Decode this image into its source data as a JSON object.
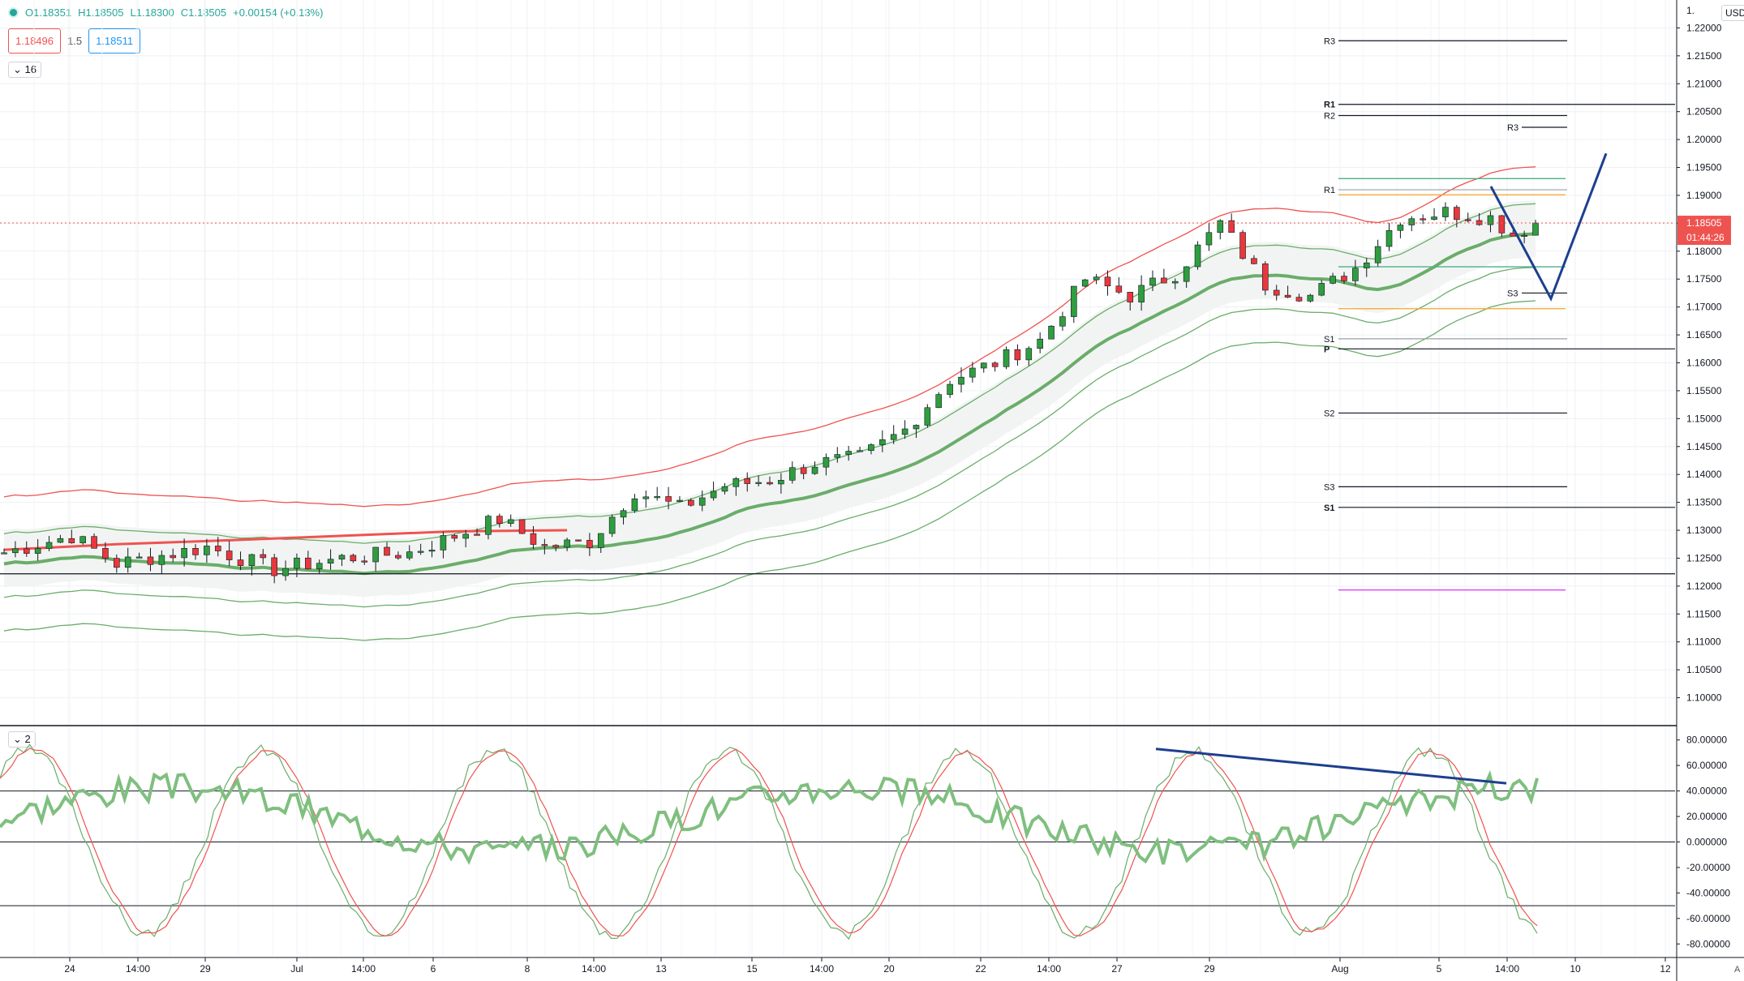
{
  "legend": {
    "open": "O1.18351",
    "high": "H1.18505",
    "low": "L1.18300",
    "close": "C1.18505",
    "change": "+0.00154 (+0.13%)",
    "sell": "1.18496",
    "spread": "1.5",
    "buy": "1.18511"
  },
  "indicators": {
    "main_badge": "16",
    "osc_badge": "2"
  },
  "currency": "USD",
  "auto_label": "A",
  "price_tag": "1.18505",
  "countdown": "01:44:26",
  "top_tick_label": "1.",
  "colors": {
    "bull": "#26a69a",
    "bear": "#ef5350",
    "green_line": "#6aad6a",
    "red_line": "#ef5350",
    "blue": "#1d3f8f",
    "price_line": "#ef5350",
    "orange": "#f5a623",
    "magenta": "#e040fb",
    "teal": "#4caf88"
  },
  "chart_data": [
    {
      "type": "candlestick",
      "title": "",
      "ylim": [
        1.095,
        1.225
      ],
      "y_ticks": [
        "1.22000",
        "1.21500",
        "1.21000",
        "1.20500",
        "1.20000",
        "1.19500",
        "1.19000",
        "1.18500",
        "1.18000",
        "1.17500",
        "1.17000",
        "1.16500",
        "1.16000",
        "1.15500",
        "1.15000",
        "1.14500",
        "1.14000",
        "1.13500",
        "1.13000",
        "1.12500",
        "1.12000",
        "1.11500",
        "1.11000",
        "1.10500",
        "1.10000"
      ],
      "x_labels": [
        "24",
        "14:00",
        "29",
        "Jul",
        "14:00",
        "6",
        "8",
        "14:00",
        "13",
        "15",
        "14:00",
        "20",
        "22",
        "14:00",
        "27",
        "29",
        "Aug",
        "5",
        "14:00",
        "10",
        "12"
      ],
      "trend": [
        [
          0,
          1.125
        ],
        [
          14,
          1.128
        ],
        [
          28,
          1.131
        ],
        [
          42,
          1.135
        ],
        [
          56,
          1.142
        ],
        [
          70,
          1.15
        ],
        [
          84,
          1.161
        ],
        [
          98,
          1.172
        ],
        [
          110,
          1.178
        ],
        [
          122,
          1.182
        ],
        [
          130,
          1.185
        ],
        [
          136,
          1.184
        ]
      ],
      "close_series": [
        [
          0,
          1.126
        ],
        [
          6,
          1.129
        ],
        [
          10,
          1.124
        ],
        [
          18,
          1.127
        ],
        [
          24,
          1.123
        ],
        [
          30,
          1.125
        ],
        [
          36,
          1.126
        ],
        [
          40,
          1.129
        ],
        [
          44,
          1.132
        ],
        [
          48,
          1.127
        ],
        [
          52,
          1.128
        ],
        [
          56,
          1.137
        ],
        [
          60,
          1.134
        ],
        [
          64,
          1.138
        ],
        [
          68,
          1.139
        ],
        [
          72,
          1.142
        ],
        [
          76,
          1.143
        ],
        [
          80,
          1.148
        ],
        [
          84,
          1.157
        ],
        [
          88,
          1.16
        ],
        [
          92,
          1.164
        ],
        [
          96,
          1.175
        ],
        [
          100,
          1.172
        ],
        [
          104,
          1.176
        ],
        [
          108,
          1.185
        ],
        [
          112,
          1.174
        ],
        [
          116,
          1.172
        ],
        [
          120,
          1.177
        ],
        [
          124,
          1.186
        ],
        [
          128,
          1.187
        ],
        [
          132,
          1.186
        ],
        [
          134,
          1.183
        ],
        [
          136,
          1.18505
        ]
      ],
      "overlay_points": {
        "upper_band_offset": 0.012,
        "lower_band_offset": 0.012,
        "red_ma_points": [
          [
            0,
            1.1265
          ],
          [
            10,
            1.1275
          ],
          [
            20,
            1.1282
          ],
          [
            30,
            1.129
          ],
          [
            40,
            1.1298
          ],
          [
            50,
            1.13
          ]
        ]
      },
      "pivot_labels": [
        {
          "label": "R3",
          "price": 1.2177
        },
        {
          "label": "R1",
          "price": 1.2063
        },
        {
          "label": "R2",
          "price": 1.2043
        },
        {
          "label": "R3",
          "price": 1.2022
        },
        {
          "label": "R1",
          "price": 1.191
        },
        {
          "label": "S3",
          "price": 1.1725
        },
        {
          "label": "S1",
          "price": 1.1643
        },
        {
          "label": "P",
          "price": 1.1625
        },
        {
          "label": "S2",
          "price": 1.151
        },
        {
          "label": "S3",
          "price": 1.1378
        },
        {
          "label": "S1",
          "price": 1.1341
        }
      ],
      "levels": [
        {
          "price": 1.1222,
          "color": "#131722"
        },
        {
          "price": 1.1193,
          "color": "#e040fb"
        },
        {
          "price": 1.1901,
          "color": "#f5a623"
        },
        {
          "price": 1.1697,
          "color": "#f5a623"
        },
        {
          "price": 1.193,
          "color": "#4caf88"
        },
        {
          "price": 1.1772,
          "color": "#4caf88"
        }
      ],
      "projection": [
        [
          1.1916,
          "a"
        ],
        [
          1.1715,
          "b"
        ],
        [
          1.1975,
          "c"
        ]
      ]
    },
    {
      "type": "line",
      "title": "",
      "ylim": [
        -90,
        90
      ],
      "y_ticks": [
        "80.00000",
        "60.00000",
        "40.00000",
        "20.00000",
        "0.000000",
        "-20.00000",
        "-40.00000",
        "-60.00000",
        "-80.00000"
      ],
      "h_levels": [
        40,
        0,
        -50
      ],
      "trendline": [
        [
          1,
          73
        ],
        [
          2,
          46
        ]
      ]
    }
  ]
}
